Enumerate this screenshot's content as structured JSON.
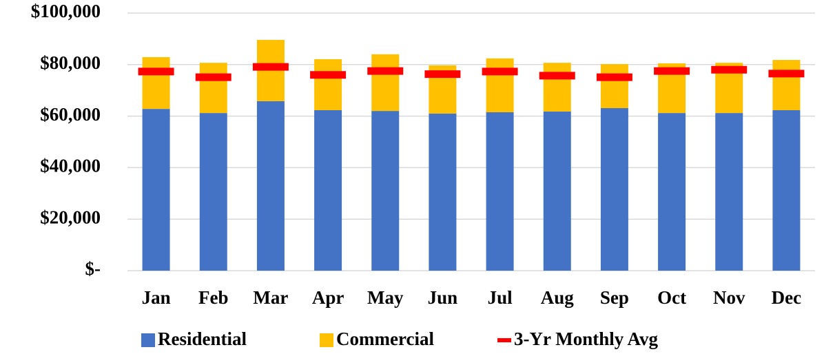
{
  "chart_data": {
    "type": "bar",
    "categories": [
      "Jan",
      "Feb",
      "Mar",
      "Apr",
      "May",
      "Jun",
      "Jul",
      "Aug",
      "Sep",
      "Oct",
      "Nov",
      "Dec"
    ],
    "series": [
      {
        "name": "Residential",
        "color": "#4472c4",
        "values": [
          62800,
          61200,
          65800,
          62300,
          62000,
          61000,
          61500,
          61800,
          63100,
          61200,
          61200,
          62300
        ]
      },
      {
        "name": "Commercial",
        "color": "#ffc000",
        "values": [
          20100,
          19500,
          23800,
          19800,
          22000,
          18700,
          20900,
          18900,
          17100,
          19300,
          19500,
          19500
        ]
      },
      {
        "name": "3-Yr Monthly Avg",
        "color": "#ff0000",
        "values": [
          77300,
          75100,
          79100,
          76000,
          77500,
          76300,
          77300,
          75700,
          75100,
          77500,
          78000,
          76500
        ]
      }
    ],
    "ylim": [
      0,
      100000
    ],
    "yticks": [
      {
        "value": 0,
        "label": "$-"
      },
      {
        "value": 20000,
        "label": "$20,000"
      },
      {
        "value": 40000,
        "label": "$40,000"
      },
      {
        "value": 60000,
        "label": "$60,000"
      },
      {
        "value": 80000,
        "label": "$80,000"
      },
      {
        "value": 100000,
        "label": "$100,000"
      }
    ],
    "grid": true
  }
}
